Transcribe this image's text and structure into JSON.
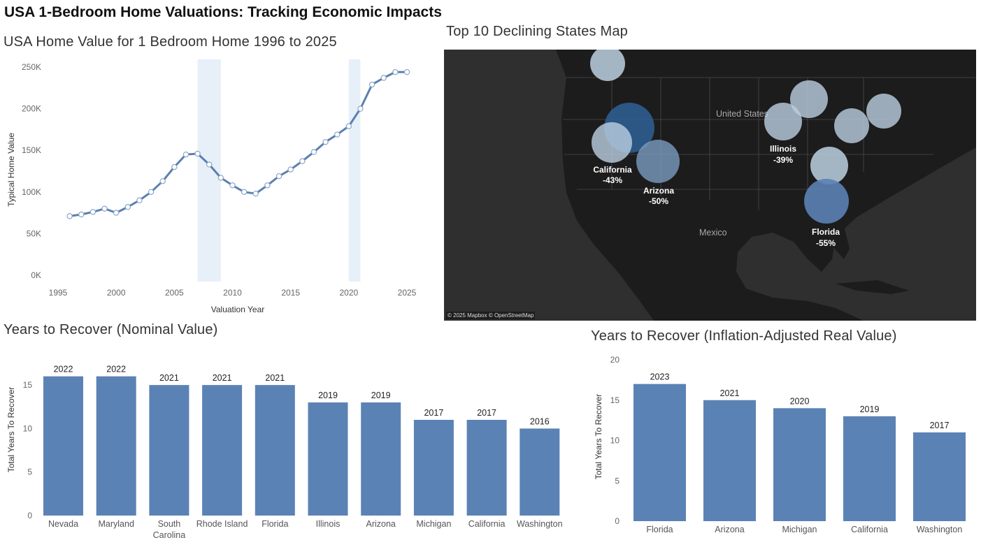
{
  "dashboard": {
    "title": "USA 1-Bedroom Home Valuations: Tracking Economic Impacts"
  },
  "line_panel": {
    "title": "USA Home Value for 1 Bedroom Home 1996 to 2025"
  },
  "map_panel": {
    "title": "Top 10 Declining States Map",
    "attribution": "© 2025 Mapbox © OpenStreetMap",
    "country_labels": [
      "United States",
      "Mexico"
    ],
    "labeled_states": [
      {
        "name": "California",
        "change": "-43%"
      },
      {
        "name": "Arizona",
        "change": "-50%"
      },
      {
        "name": "Illinois",
        "change": "-39%"
      },
      {
        "name": "Florida",
        "change": "-55%"
      }
    ],
    "colors": {
      "background": "#2f2f2f",
      "land": "#1c1c1c",
      "circle_light": "#bcd0e2",
      "circle_dark": "#2f5d8f"
    }
  },
  "nominal_panel": {
    "title": "Years to Recover (Nominal Value)"
  },
  "real_panel": {
    "title": "Years to Recover (Inflation-Adjusted Real Value)"
  },
  "chart_data": [
    {
      "type": "line",
      "ylabel": "Typical Home Value",
      "xlabel": "Valuation Year",
      "x": [
        1996,
        1997,
        1998,
        1999,
        2000,
        2001,
        2002,
        2003,
        2004,
        2005,
        2006,
        2007,
        2008,
        2009,
        2010,
        2011,
        2012,
        2013,
        2014,
        2015,
        2016,
        2017,
        2018,
        2019,
        2020,
        2021,
        2022,
        2023,
        2024,
        2025
      ],
      "y": [
        71000,
        73000,
        76000,
        80000,
        75000,
        82000,
        90000,
        100000,
        113000,
        130000,
        145000,
        146000,
        133000,
        117000,
        108000,
        100000,
        98000,
        108000,
        119000,
        127000,
        137000,
        148000,
        160000,
        169000,
        179000,
        200000,
        229000,
        237000,
        244000,
        244000
      ],
      "xlim": [
        1995,
        2025
      ],
      "ylim": [
        0,
        250000
      ],
      "xticks": [
        1995,
        2000,
        2005,
        2010,
        2015,
        2020,
        2025
      ],
      "yticks": [
        0,
        50000,
        100000,
        150000,
        200000,
        250000
      ],
      "ytick_labels": [
        "0K",
        "50K",
        "100K",
        "150K",
        "200K",
        "250K"
      ],
      "shaded_periods": [
        [
          2007,
          2009
        ],
        [
          2020,
          2021
        ]
      ],
      "grid": false,
      "colors": {
        "line": "#5b7fb0",
        "marker_fill": "#ffffff",
        "shade": "#e7f0f8"
      }
    },
    {
      "type": "bar",
      "categories": [
        "Nevada",
        "Maryland",
        "South Carolina",
        "Rhode Island",
        "Florida",
        "Illinois",
        "Arizona",
        "Michigan",
        "California",
        "Washington"
      ],
      "values": [
        16,
        16,
        15,
        15,
        15,
        13,
        13,
        11,
        11,
        10
      ],
      "data_labels": [
        "2022",
        "2022",
        "2021",
        "2021",
        "2021",
        "2019",
        "2019",
        "2017",
        "2017",
        "2016"
      ],
      "ylabel": "Total Years To Recover",
      "ylim": [
        0,
        17.5
      ],
      "yticks": [
        0,
        5,
        10,
        15
      ],
      "grid": false,
      "colors": {
        "bar": "#5b82b5"
      }
    },
    {
      "type": "bar",
      "categories": [
        "Florida",
        "Arizona",
        "Michigan",
        "California",
        "Washington"
      ],
      "values": [
        17,
        15,
        14,
        13,
        11
      ],
      "data_labels": [
        "2023",
        "2021",
        "2020",
        "2019",
        "2017"
      ],
      "ylabel": "Total Years To Recover",
      "ylim": [
        0,
        20
      ],
      "yticks": [
        0,
        5,
        10,
        15,
        20
      ],
      "grid": false,
      "colors": {
        "bar": "#5b82b5"
      }
    }
  ]
}
